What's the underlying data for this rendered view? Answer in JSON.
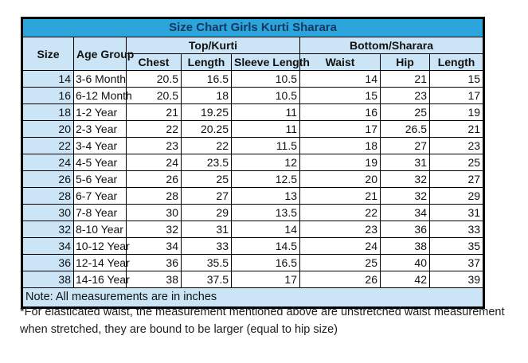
{
  "colors": {
    "title_bg": "#2CA4DC",
    "title_text": "#17375E",
    "header_bg": "#CBE5F6",
    "border": "#000000"
  },
  "chart_data": {
    "type": "table",
    "title": "Size Chart Girls Kurti Sharara",
    "column_groups": [
      {
        "label": "Top/Kurti",
        "span": 3
      },
      {
        "label": "Bottom/Sharara",
        "span": 3
      }
    ],
    "columns": [
      "Size",
      "Age Group",
      "Chest",
      "Length",
      "Sleeve Length",
      "Waist",
      "Hip",
      "Length"
    ],
    "rows": [
      [
        "14",
        "3-6 Month",
        "20.5",
        "16.5",
        "10.5",
        "14",
        "21",
        "15"
      ],
      [
        "16",
        "6-12 Month",
        "20.5",
        "18",
        "10.5",
        "15",
        "23",
        "17"
      ],
      [
        "18",
        "1-2 Year",
        "21",
        "19.25",
        "11",
        "16",
        "25",
        "19"
      ],
      [
        "20",
        "2-3 Year",
        "22",
        "20.25",
        "11",
        "17",
        "26.5",
        "21"
      ],
      [
        "22",
        "3-4 Year",
        "23",
        "22",
        "11.5",
        "18",
        "27",
        "23"
      ],
      [
        "24",
        "4-5 Year",
        "24",
        "23.5",
        "12",
        "19",
        "31",
        "25"
      ],
      [
        "26",
        "5-6 Year",
        "26",
        "25",
        "12.5",
        "20",
        "32",
        "27"
      ],
      [
        "28",
        "6-7 Year",
        "28",
        "27",
        "13",
        "21",
        "32",
        "29"
      ],
      [
        "30",
        "7-8 Year",
        "30",
        "29",
        "13.5",
        "22",
        "34",
        "31"
      ],
      [
        "32",
        "8-10 Year",
        "32",
        "31",
        "14",
        "23",
        "36",
        "33"
      ],
      [
        "34",
        "10-12 Year",
        "34",
        "33",
        "14.5",
        "24",
        "38",
        "35"
      ],
      [
        "36",
        "12-14 Year",
        "36",
        "35.5",
        "16.5",
        "25",
        "40",
        "37"
      ],
      [
        "38",
        "14-16 Year",
        "38",
        "37.5",
        "17",
        "26",
        "42",
        "39"
      ]
    ],
    "note": "Note: All measurements are in inches"
  },
  "footer": {
    "disclaimer": "*For elasticated waist, the measurement mentioned above are unstretched waist measurement when stretched, they are bound to be larger (equal to hip size)"
  }
}
